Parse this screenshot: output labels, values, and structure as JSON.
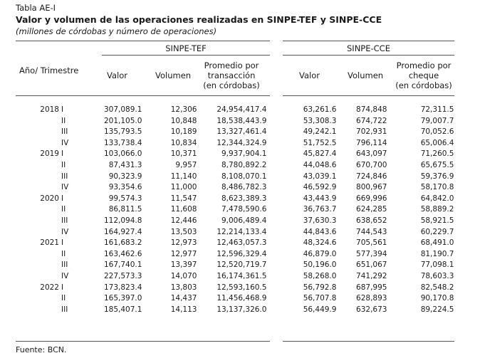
{
  "caption": {
    "label": "Tabla AE-I",
    "title": "Valor y volumen de las operaciones realizadas en SINPE-TEF y SINPE-CCE",
    "subtitle": "(millones de córdobas y número de operaciones)"
  },
  "groups": {
    "tef": "SINPE-TEF",
    "cce": "SINPE-CCE"
  },
  "headers": {
    "period": "Año/ Trimestre",
    "tef_valor": "Valor",
    "tef_volumen": "Volumen",
    "tef_promedio": [
      "Promedio por",
      "transacción",
      "(en córdobas)"
    ],
    "cce_valor": "Valor",
    "cce_volumen": "Volumen",
    "cce_promedio": [
      "Promedio por",
      "cheque",
      "(en córdobas)"
    ]
  },
  "rows": [
    {
      "year": "2018",
      "q": "I",
      "tef_valor": "307,089.1",
      "tef_volumen": "12,306",
      "tef_promedio": "24,954,417.4",
      "cce_valor": "63,261.6",
      "cce_volumen": "874,848",
      "cce_promedio": "72,311.5"
    },
    {
      "year": "",
      "q": "II",
      "tef_valor": "201,105.0",
      "tef_volumen": "10,848",
      "tef_promedio": "18,538,443.9",
      "cce_valor": "53,308.3",
      "cce_volumen": "674,722",
      "cce_promedio": "79,007.7"
    },
    {
      "year": "",
      "q": "III",
      "tef_valor": "135,793.5",
      "tef_volumen": "10,189",
      "tef_promedio": "13,327,461.4",
      "cce_valor": "49,242.1",
      "cce_volumen": "702,931",
      "cce_promedio": "70,052.6"
    },
    {
      "year": "",
      "q": "IV",
      "tef_valor": "133,738.4",
      "tef_volumen": "10,834",
      "tef_promedio": "12,344,324.9",
      "cce_valor": "51,752.5",
      "cce_volumen": "796,114",
      "cce_promedio": "65,006.4"
    },
    {
      "year": "2019",
      "q": "I",
      "tef_valor": "103,066.0",
      "tef_volumen": "10,371",
      "tef_promedio": "9,937,904.1",
      "cce_valor": "45,827.4",
      "cce_volumen": "643,097",
      "cce_promedio": "71,260.5"
    },
    {
      "year": "",
      "q": "II",
      "tef_valor": "87,431.3",
      "tef_volumen": "9,957",
      "tef_promedio": "8,780,892.2",
      "cce_valor": "44,048.6",
      "cce_volumen": "670,700",
      "cce_promedio": "65,675.5"
    },
    {
      "year": "",
      "q": "III",
      "tef_valor": "90,323.9",
      "tef_volumen": "11,140",
      "tef_promedio": "8,108,070.1",
      "cce_valor": "43,039.1",
      "cce_volumen": "724,846",
      "cce_promedio": "59,376.9"
    },
    {
      "year": "",
      "q": "IV",
      "tef_valor": "93,354.6",
      "tef_volumen": "11,000",
      "tef_promedio": "8,486,782.3",
      "cce_valor": "46,592.9",
      "cce_volumen": "800,967",
      "cce_promedio": "58,170.8"
    },
    {
      "year": "2020",
      "q": "I",
      "tef_valor": "99,574.3",
      "tef_volumen": "11,547",
      "tef_promedio": "8,623,389.3",
      "cce_valor": "43,443.9",
      "cce_volumen": "669,996",
      "cce_promedio": "64,842.0"
    },
    {
      "year": "",
      "q": "II",
      "tef_valor": "86,811.5",
      "tef_volumen": "11,608",
      "tef_promedio": "7,478,590.6",
      "cce_valor": "36,763.7",
      "cce_volumen": "624,285",
      "cce_promedio": "58,889.2"
    },
    {
      "year": "",
      "q": "III",
      "tef_valor": "112,094.8",
      "tef_volumen": "12,446",
      "tef_promedio": "9,006,489.4",
      "cce_valor": "37,630.3",
      "cce_volumen": "638,652",
      "cce_promedio": "58,921.5"
    },
    {
      "year": "",
      "q": "IV",
      "tef_valor": "164,927.4",
      "tef_volumen": "13,503",
      "tef_promedio": "12,214,133.4",
      "cce_valor": "44,843.6",
      "cce_volumen": "744,543",
      "cce_promedio": "60,229.7"
    },
    {
      "year": "2021",
      "q": "I",
      "tef_valor": "161,683.2",
      "tef_volumen": "12,973",
      "tef_promedio": "12,463,057.3",
      "cce_valor": "48,324.6",
      "cce_volumen": "705,561",
      "cce_promedio": "68,491.0"
    },
    {
      "year": "",
      "q": "II",
      "tef_valor": "163,462.6",
      "tef_volumen": "12,977",
      "tef_promedio": "12,596,329.4",
      "cce_valor": "46,879.0",
      "cce_volumen": "577,394",
      "cce_promedio": "81,190.7"
    },
    {
      "year": "",
      "q": "III",
      "tef_valor": "167,740.1",
      "tef_volumen": "13,397",
      "tef_promedio": "12,520,719.7",
      "cce_valor": "50,196.0",
      "cce_volumen": "651,067",
      "cce_promedio": "77,098.1"
    },
    {
      "year": "",
      "q": "IV",
      "tef_valor": "227,573.3",
      "tef_volumen": "14,070",
      "tef_promedio": "16,174,361.5",
      "cce_valor": "58,268.0",
      "cce_volumen": "741,292",
      "cce_promedio": "78,603.3"
    },
    {
      "year": "2022",
      "q": "I",
      "tef_valor": "173,823.4",
      "tef_volumen": "13,803",
      "tef_promedio": "12,593,160.5",
      "cce_valor": "56,792.8",
      "cce_volumen": "687,995",
      "cce_promedio": "82,548.2"
    },
    {
      "year": "",
      "q": "II",
      "tef_valor": "165,397.0",
      "tef_volumen": "14,437",
      "tef_promedio": "11,456,468.9",
      "cce_valor": "56,707.8",
      "cce_volumen": "628,893",
      "cce_promedio": "90,170.8"
    },
    {
      "year": "",
      "q": "III",
      "tef_valor": "185,407.1",
      "tef_volumen": "14,113",
      "tef_promedio": "13,137,326.0",
      "cce_valor": "56,449.9",
      "cce_volumen": "632,673",
      "cce_promedio": "89,224.5"
    }
  ],
  "source": "Fuente: BCN."
}
